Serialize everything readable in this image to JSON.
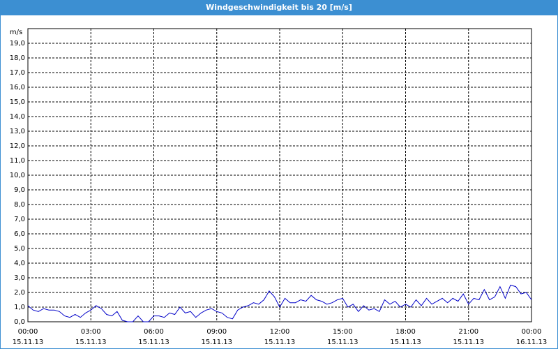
{
  "chart_data": {
    "type": "line",
    "title": "Windgeschwindigkeit bis 20 [m/s]",
    "ylabel": "m/s",
    "color": "#0000c8",
    "grid": true,
    "xlim": [
      0,
      24
    ],
    "xticks": [
      {
        "value": 0,
        "label": "00:00",
        "sublabel": "15.11.13"
      },
      {
        "value": 3,
        "label": "03:00",
        "sublabel": "15.11.13"
      },
      {
        "value": 6,
        "label": "06:00",
        "sublabel": "15.11.13"
      },
      {
        "value": 9,
        "label": "09:00",
        "sublabel": "15.11.13"
      },
      {
        "value": 12,
        "label": "12:00",
        "sublabel": "15.11.13"
      },
      {
        "value": 15,
        "label": "15:00",
        "sublabel": "15.11.13"
      },
      {
        "value": 18,
        "label": "18:00",
        "sublabel": "15.11.13"
      },
      {
        "value": 21,
        "label": "21:00",
        "sublabel": "15.11.13"
      },
      {
        "value": 24,
        "label": "00:00",
        "sublabel": "16.11.13"
      }
    ],
    "ylim": [
      0,
      20
    ],
    "yticks": [
      {
        "value": 0,
        "label": "0,0"
      },
      {
        "value": 1,
        "label": "1,0"
      },
      {
        "value": 2,
        "label": "2,0"
      },
      {
        "value": 3,
        "label": "3,0"
      },
      {
        "value": 4,
        "label": "4,0"
      },
      {
        "value": 5,
        "label": "5,0"
      },
      {
        "value": 6,
        "label": "6,0"
      },
      {
        "value": 7,
        "label": "7,0"
      },
      {
        "value": 8,
        "label": "8,0"
      },
      {
        "value": 9,
        "label": "9,0"
      },
      {
        "value": 10,
        "label": "10,0"
      },
      {
        "value": 11,
        "label": "11,0"
      },
      {
        "value": 12,
        "label": "12,0"
      },
      {
        "value": 13,
        "label": "13,0"
      },
      {
        "value": 14,
        "label": "14,0"
      },
      {
        "value": 15,
        "label": "15,0"
      },
      {
        "value": 16,
        "label": "16,0"
      },
      {
        "value": 17,
        "label": "17,0"
      },
      {
        "value": 18,
        "label": "18,0"
      },
      {
        "value": 19,
        "label": "19,0"
      }
    ],
    "x": [
      0,
      0.25,
      0.5,
      0.75,
      1,
      1.25,
      1.5,
      1.75,
      2,
      2.25,
      2.5,
      2.75,
      3,
      3.25,
      3.5,
      3.75,
      4,
      4.25,
      4.5,
      4.75,
      5,
      5.25,
      5.5,
      5.75,
      6,
      6.25,
      6.5,
      6.75,
      7,
      7.25,
      7.5,
      7.75,
      8,
      8.25,
      8.5,
      8.75,
      9,
      9.25,
      9.5,
      9.75,
      10,
      10.25,
      10.5,
      10.75,
      11,
      11.25,
      11.5,
      11.75,
      12,
      12.25,
      12.5,
      12.75,
      13,
      13.25,
      13.5,
      13.75,
      14,
      14.25,
      14.5,
      14.75,
      15,
      15.25,
      15.5,
      15.75,
      16,
      16.25,
      16.5,
      16.75,
      17,
      17.25,
      17.5,
      17.75,
      18,
      18.25,
      18.5,
      18.75,
      19,
      19.25,
      19.5,
      19.75,
      20,
      20.25,
      20.5,
      20.75,
      21,
      21.25,
      21.5,
      21.75,
      22,
      22.25,
      22.5,
      22.75,
      23,
      23.25,
      23.5,
      23.75,
      24
    ],
    "values": [
      1.1,
      0.8,
      0.7,
      0.9,
      0.8,
      0.8,
      0.7,
      0.4,
      0.3,
      0.5,
      0.3,
      0.6,
      0.8,
      1.1,
      0.9,
      0.5,
      0.4,
      0.7,
      0.1,
      0.0,
      0.0,
      0.4,
      0.0,
      0.0,
      0.4,
      0.4,
      0.3,
      0.6,
      0.5,
      1.0,
      0.6,
      0.7,
      0.3,
      0.6,
      0.8,
      0.9,
      0.7,
      0.6,
      0.3,
      0.2,
      0.8,
      1.0,
      1.1,
      1.3,
      1.2,
      1.5,
      2.1,
      1.7,
      1.0,
      1.6,
      1.3,
      1.3,
      1.5,
      1.4,
      1.8,
      1.5,
      1.4,
      1.2,
      1.3,
      1.5,
      1.6,
      1.0,
      1.2,
      0.7,
      1.1,
      0.8,
      0.9,
      0.7,
      1.5,
      1.2,
      1.4,
      1.0,
      1.2,
      1.0,
      1.5,
      1.1,
      1.6,
      1.2,
      1.4,
      1.6,
      1.3,
      1.6,
      1.4,
      1.9,
      1.2,
      1.6,
      1.5,
      2.2,
      1.5,
      1.7,
      2.4,
      1.6,
      2.5,
      2.4,
      1.9,
      2.0,
      1.5
    ]
  }
}
